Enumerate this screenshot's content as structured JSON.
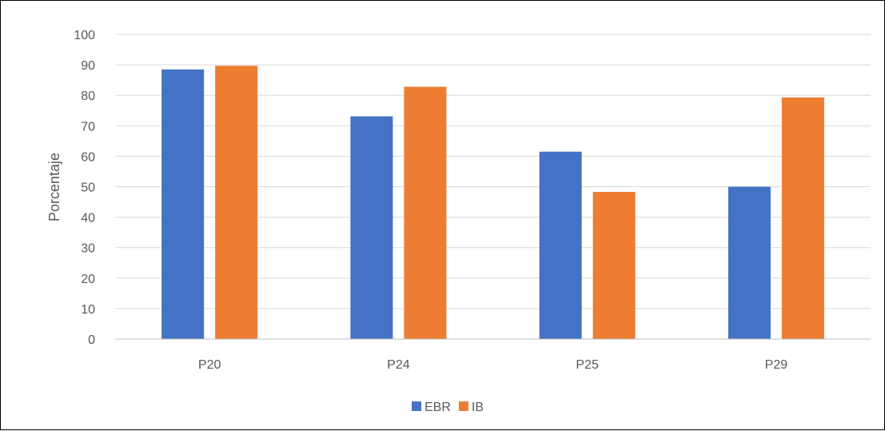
{
  "chart_data": {
    "type": "bar",
    "title": "",
    "xlabel": "",
    "ylabel": "Porcentaje",
    "ylim": [
      0,
      100
    ],
    "yticks": [
      0,
      10,
      20,
      30,
      40,
      50,
      60,
      70,
      80,
      90,
      100
    ],
    "grid": true,
    "legend_position": "bottom",
    "categories": [
      "P20",
      "P24",
      "P25",
      "P29"
    ],
    "series": [
      {
        "name": "EBR",
        "color": "#4472C4",
        "values": [
          88.5,
          73.1,
          61.5,
          50.0
        ]
      },
      {
        "name": "IB",
        "color": "#ED7D31",
        "values": [
          89.7,
          82.8,
          48.3,
          79.3
        ]
      }
    ]
  }
}
